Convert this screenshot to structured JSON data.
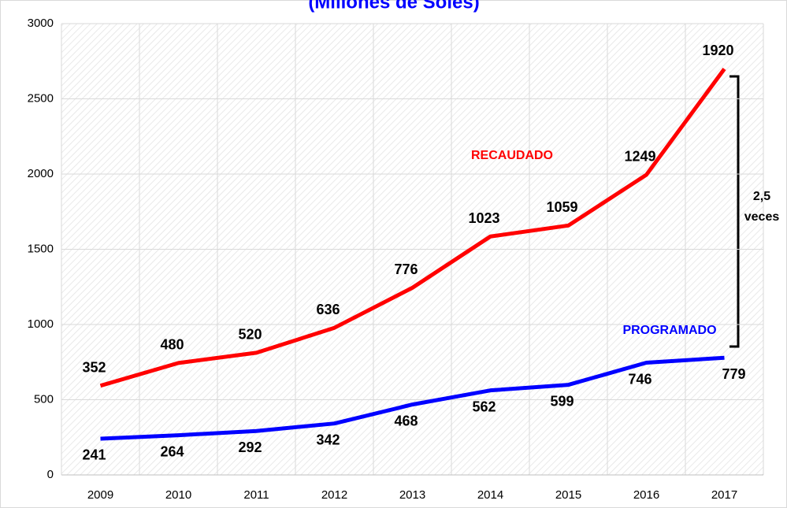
{
  "chart_data": {
    "type": "line",
    "stacked": true,
    "title": "(Millones de Soles)",
    "categories": [
      "2009",
      "2010",
      "2011",
      "2012",
      "2013",
      "2014",
      "2015",
      "2016",
      "2017"
    ],
    "series": [
      {
        "name": "PROGRAMADO",
        "color": "#0000ff",
        "values": [
          241,
          264,
          292,
          342,
          468,
          562,
          599,
          746,
          779
        ]
      },
      {
        "name": "RECAUDADO",
        "color": "#ff0000",
        "values": [
          352,
          480,
          520,
          636,
          776,
          1023,
          1059,
          1249,
          1920
        ]
      }
    ],
    "annotations": [
      "2,5",
      "veces"
    ],
    "ylim": [
      0,
      3000
    ],
    "yticks": [
      0,
      500,
      1000,
      1500,
      2000,
      2500,
      3000
    ],
    "grid": true
  }
}
